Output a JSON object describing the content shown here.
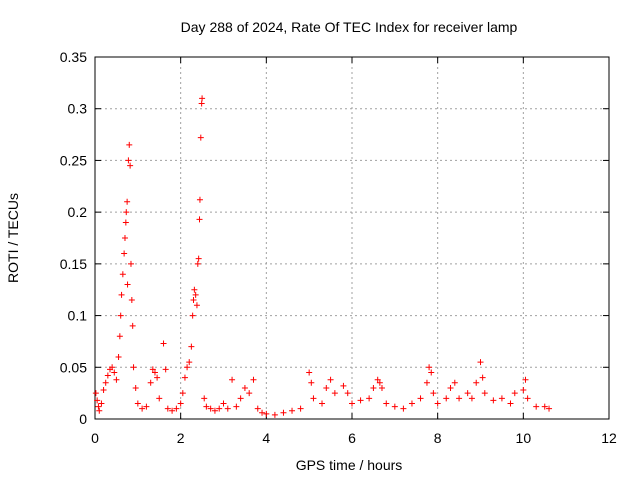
{
  "chart_data": {
    "type": "scatter",
    "title": "Day 288 of 2024, Rate Of TEC Index for receiver lamp",
    "xlabel": "GPS time / hours",
    "ylabel": "ROTI / TECUs",
    "xlim": [
      0,
      12
    ],
    "ylim": [
      0,
      0.35
    ],
    "xticks": [
      0,
      2,
      4,
      6,
      8,
      10,
      12
    ],
    "xtick_labels": [
      "0",
      "2",
      "4",
      "6",
      "8",
      "10",
      "12"
    ],
    "yticks": [
      0,
      0.05,
      0.1,
      0.15,
      0.2,
      0.25,
      0.3,
      0.35
    ],
    "ytick_labels": [
      "0",
      "0.05",
      "0.1",
      "0.15",
      "0.2",
      "0.25",
      "0.3",
      "0.35"
    ],
    "grid": true,
    "marker": "+",
    "series": [
      {
        "name": "ROTI",
        "color": "#ff0000",
        "points": [
          [
            0.02,
            0.025
          ],
          [
            0.05,
            0.018
          ],
          [
            0.08,
            0.012
          ],
          [
            0.1,
            0.008
          ],
          [
            0.15,
            0.015
          ],
          [
            0.2,
            0.028
          ],
          [
            0.25,
            0.035
          ],
          [
            0.3,
            0.042
          ],
          [
            0.35,
            0.048
          ],
          [
            0.4,
            0.05
          ],
          [
            0.45,
            0.045
          ],
          [
            0.5,
            0.038
          ],
          [
            0.55,
            0.06
          ],
          [
            0.58,
            0.08
          ],
          [
            0.6,
            0.1
          ],
          [
            0.62,
            0.12
          ],
          [
            0.65,
            0.14
          ],
          [
            0.68,
            0.16
          ],
          [
            0.7,
            0.175
          ],
          [
            0.72,
            0.19
          ],
          [
            0.73,
            0.2
          ],
          [
            0.75,
            0.21
          ],
          [
            0.76,
            0.13
          ],
          [
            0.78,
            0.25
          ],
          [
            0.8,
            0.265
          ],
          [
            0.82,
            0.245
          ],
          [
            0.84,
            0.15
          ],
          [
            0.86,
            0.115
          ],
          [
            0.88,
            0.09
          ],
          [
            0.9,
            0.05
          ],
          [
            0.95,
            0.03
          ],
          [
            1.0,
            0.015
          ],
          [
            1.1,
            0.01
          ],
          [
            1.2,
            0.012
          ],
          [
            1.3,
            0.035
          ],
          [
            1.35,
            0.048
          ],
          [
            1.4,
            0.045
          ],
          [
            1.45,
            0.04
          ],
          [
            1.5,
            0.02
          ],
          [
            1.6,
            0.073
          ],
          [
            1.65,
            0.048
          ],
          [
            1.7,
            0.01
          ],
          [
            1.8,
            0.008
          ],
          [
            1.9,
            0.01
          ],
          [
            2.0,
            0.015
          ],
          [
            2.05,
            0.025
          ],
          [
            2.1,
            0.04
          ],
          [
            2.15,
            0.05
          ],
          [
            2.2,
            0.055
          ],
          [
            2.25,
            0.07
          ],
          [
            2.28,
            0.1
          ],
          [
            2.3,
            0.115
          ],
          [
            2.32,
            0.125
          ],
          [
            2.35,
            0.12
          ],
          [
            2.38,
            0.11
          ],
          [
            2.4,
            0.15
          ],
          [
            2.42,
            0.155
          ],
          [
            2.44,
            0.193
          ],
          [
            2.45,
            0.212
          ],
          [
            2.47,
            0.272
          ],
          [
            2.49,
            0.305
          ],
          [
            2.5,
            0.31
          ],
          [
            2.55,
            0.02
          ],
          [
            2.6,
            0.012
          ],
          [
            2.7,
            0.01
          ],
          [
            2.8,
            0.008
          ],
          [
            2.9,
            0.01
          ],
          [
            3.0,
            0.015
          ],
          [
            3.1,
            0.01
          ],
          [
            3.2,
            0.038
          ],
          [
            3.3,
            0.012
          ],
          [
            3.4,
            0.02
          ],
          [
            3.5,
            0.03
          ],
          [
            3.6,
            0.025
          ],
          [
            3.7,
            0.038
          ],
          [
            3.8,
            0.01
          ],
          [
            3.9,
            0.006
          ],
          [
            4.0,
            0.005
          ],
          [
            4.2,
            0.004
          ],
          [
            4.4,
            0.006
          ],
          [
            4.6,
            0.008
          ],
          [
            4.8,
            0.01
          ],
          [
            5.0,
            0.045
          ],
          [
            5.05,
            0.035
          ],
          [
            5.1,
            0.02
          ],
          [
            5.3,
            0.015
          ],
          [
            5.4,
            0.03
          ],
          [
            5.5,
            0.038
          ],
          [
            5.6,
            0.025
          ],
          [
            5.8,
            0.032
          ],
          [
            5.9,
            0.025
          ],
          [
            6.0,
            0.015
          ],
          [
            6.2,
            0.018
          ],
          [
            6.4,
            0.02
          ],
          [
            6.5,
            0.03
          ],
          [
            6.6,
            0.038
          ],
          [
            6.65,
            0.035
          ],
          [
            6.7,
            0.03
          ],
          [
            6.8,
            0.015
          ],
          [
            7.0,
            0.012
          ],
          [
            7.2,
            0.01
          ],
          [
            7.4,
            0.015
          ],
          [
            7.6,
            0.02
          ],
          [
            7.75,
            0.035
          ],
          [
            7.8,
            0.05
          ],
          [
            7.85,
            0.045
          ],
          [
            7.9,
            0.025
          ],
          [
            8.0,
            0.015
          ],
          [
            8.2,
            0.02
          ],
          [
            8.3,
            0.03
          ],
          [
            8.4,
            0.035
          ],
          [
            8.5,
            0.02
          ],
          [
            8.7,
            0.025
          ],
          [
            8.8,
            0.02
          ],
          [
            8.9,
            0.035
          ],
          [
            9.0,
            0.055
          ],
          [
            9.05,
            0.04
          ],
          [
            9.1,
            0.025
          ],
          [
            9.3,
            0.018
          ],
          [
            9.5,
            0.02
          ],
          [
            9.7,
            0.015
          ],
          [
            9.8,
            0.025
          ],
          [
            10.0,
            0.028
          ],
          [
            10.05,
            0.038
          ],
          [
            10.1,
            0.02
          ],
          [
            10.3,
            0.012
          ],
          [
            10.5,
            0.012
          ],
          [
            10.6,
            0.01
          ]
        ]
      }
    ]
  }
}
